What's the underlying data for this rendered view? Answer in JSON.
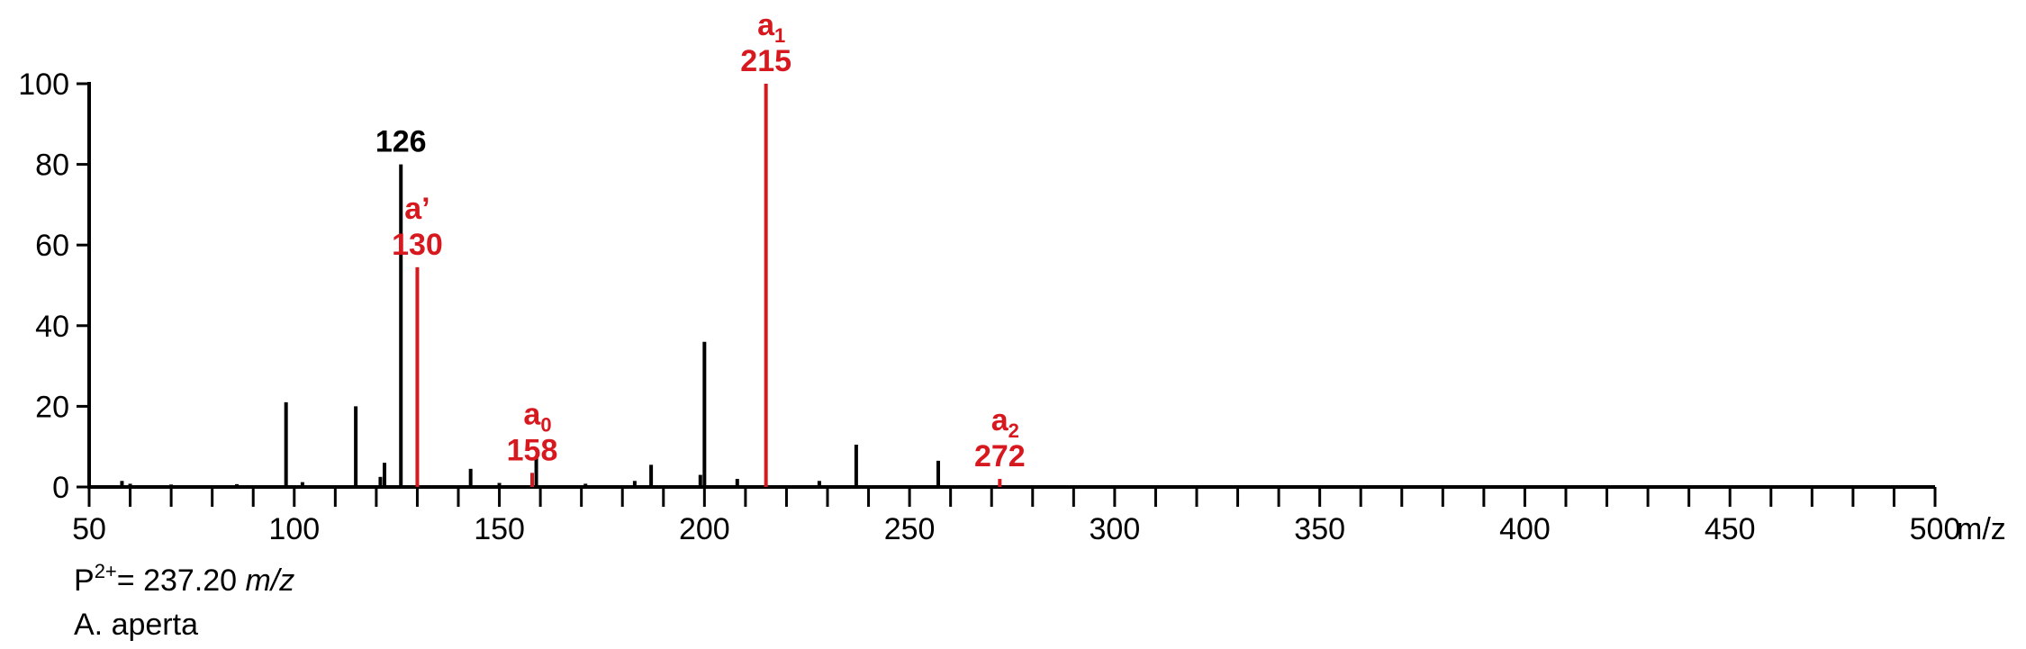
{
  "chart_data": {
    "type": "bar",
    "xlabel": "m/z",
    "xlim": [
      50,
      500
    ],
    "ylim": [
      0,
      100
    ],
    "x_ticks": [
      50,
      100,
      150,
      200,
      250,
      300,
      350,
      400,
      450,
      500
    ],
    "y_ticks": [
      0,
      20,
      40,
      60,
      80,
      100
    ],
    "x_minor_step": 10,
    "grid": false,
    "colors": {
      "default": "#000000",
      "annotated": "#d7191f"
    },
    "series": [
      {
        "name": "",
        "color": "#000000",
        "peaks": [
          {
            "x": 58,
            "y": 1.5
          },
          {
            "x": 60,
            "y": 0.8
          },
          {
            "x": 70,
            "y": 0.6
          },
          {
            "x": 86,
            "y": 0.7
          },
          {
            "x": 98,
            "y": 21
          },
          {
            "x": 102,
            "y": 1.2
          },
          {
            "x": 115,
            "y": 20
          },
          {
            "x": 121,
            "y": 2.5
          },
          {
            "x": 122,
            "y": 6
          },
          {
            "x": 126,
            "y": 80
          },
          {
            "x": 143,
            "y": 4.5
          },
          {
            "x": 150,
            "y": 1
          },
          {
            "x": 159,
            "y": 7.5
          },
          {
            "x": 171,
            "y": 0.8
          },
          {
            "x": 183,
            "y": 1.5
          },
          {
            "x": 187,
            "y": 5.5
          },
          {
            "x": 199,
            "y": 3
          },
          {
            "x": 200,
            "y": 36
          },
          {
            "x": 208,
            "y": 2
          },
          {
            "x": 228,
            "y": 1.5
          },
          {
            "x": 237,
            "y": 10.5
          },
          {
            "x": 257,
            "y": 6.5
          }
        ]
      },
      {
        "name": "",
        "color": "#d7191f",
        "peaks": [
          {
            "x": 130,
            "y": 54.5
          },
          {
            "x": 158,
            "y": 3.5
          },
          {
            "x": 215,
            "y": 100
          },
          {
            "x": 272,
            "y": 2
          }
        ]
      }
    ],
    "annotations": [
      {
        "x": 126,
        "y": 80,
        "color": "#000000",
        "lines": [
          {
            "text": "126"
          }
        ]
      },
      {
        "x": 130,
        "y": 54.5,
        "color": "#d7191f",
        "lines": [
          {
            "text": "a’"
          },
          {
            "text": "130"
          }
        ]
      },
      {
        "x": 158,
        "y": 3.5,
        "color": "#d7191f",
        "lines": [
          {
            "text": "a",
            "sub": "0"
          },
          {
            "text": "158"
          }
        ]
      },
      {
        "x": 215,
        "y": 100,
        "color": "#d7191f",
        "lines": [
          {
            "text": "a",
            "sub": "1"
          },
          {
            "text": "215"
          }
        ]
      },
      {
        "x": 272,
        "y": 2,
        "color": "#d7191f",
        "lines": [
          {
            "text": "a",
            "sub": "2"
          },
          {
            "text": "272"
          }
        ]
      }
    ]
  },
  "footer": {
    "precursor_prefix": "P",
    "precursor_charge": "2+",
    "precursor_value": "= 237.20 ",
    "precursor_unit": "m/z",
    "species": "A. aperta"
  }
}
